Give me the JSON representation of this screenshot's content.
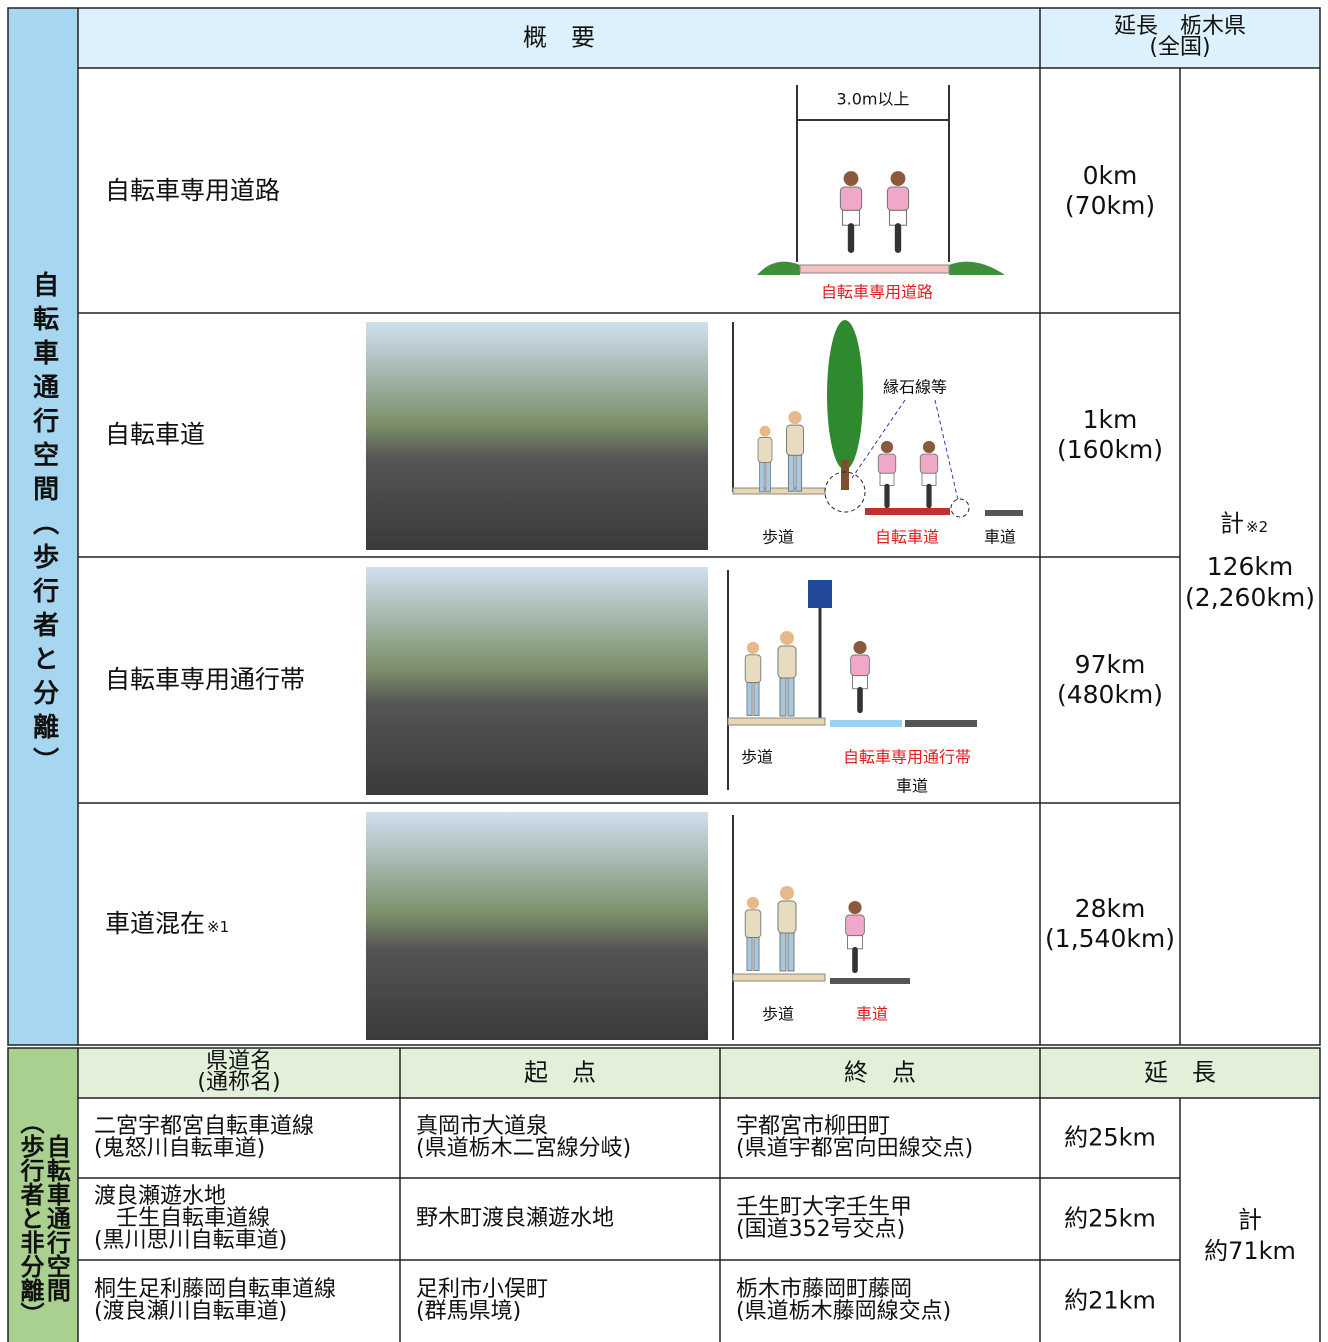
{
  "upper": {
    "side_label": "自転車通行空間（歩行者と分離）",
    "header": {
      "overview": "概　要",
      "length": [
        "延長　栃木県",
        "(全国)"
      ]
    },
    "rows": [
      {
        "title": "自転車専用道路",
        "note": null,
        "length": [
          "0km",
          "(70km)"
        ],
        "diagram": [
          "3.0m以上",
          "自転車専用道路"
        ]
      },
      {
        "title": "自転車道",
        "note": null,
        "length": [
          "1km",
          "(160km)"
        ],
        "diagram": [
          "縁石線等",
          "歩道",
          "自転車道",
          "車道"
        ]
      },
      {
        "title": "自転車専用通行帯",
        "note": null,
        "length": [
          "97km",
          "(480km)"
        ],
        "diagram": [
          "歩道",
          "自転車専用通行帯",
          "車道"
        ]
      },
      {
        "title": "車道混在",
        "note": "※1",
        "length": [
          "28km",
          "(1,540km)"
        ],
        "diagram": [
          "歩道",
          "車道"
        ]
      }
    ],
    "total": {
      "label": "計",
      "note": "※2",
      "lines": [
        "126km",
        "(2,260km)"
      ]
    }
  },
  "lower": {
    "side_label": [
      "自転車通行空間",
      "（歩行者と非分離）"
    ],
    "header": {
      "name": [
        "県道名",
        "(通称名)"
      ],
      "start": "起　点",
      "end": "終　点",
      "length": "延　長"
    },
    "rows": [
      {
        "name": [
          "二宮宇都宮自転車道線",
          "(鬼怒川自転車道)"
        ],
        "start": [
          "真岡市大道泉",
          "(県道栃木二宮線分岐)"
        ],
        "end": [
          "宇都宮市柳田町",
          "(県道宇都宮向田線交点)"
        ],
        "length": "約25km"
      },
      {
        "name": [
          "渡良瀬遊水地",
          "　壬生自転車道線",
          "(黒川思川自転車道)"
        ],
        "start": [
          "野木町渡良瀬遊水地"
        ],
        "end": [
          "壬生町大字壬生甲",
          "(国道352号交点)"
        ],
        "length": "約25km"
      },
      {
        "name": [
          "桐生足利藤岡自転車道線",
          "(渡良瀬川自転車道)"
        ],
        "start": [
          "足利市小俣町",
          "(群馬県境)"
        ],
        "end": [
          "栃木市藤岡町藤岡",
          "(県道栃木藤岡線交点)"
        ],
        "length": "約21km"
      }
    ],
    "total": [
      "計",
      "約71km"
    ]
  }
}
